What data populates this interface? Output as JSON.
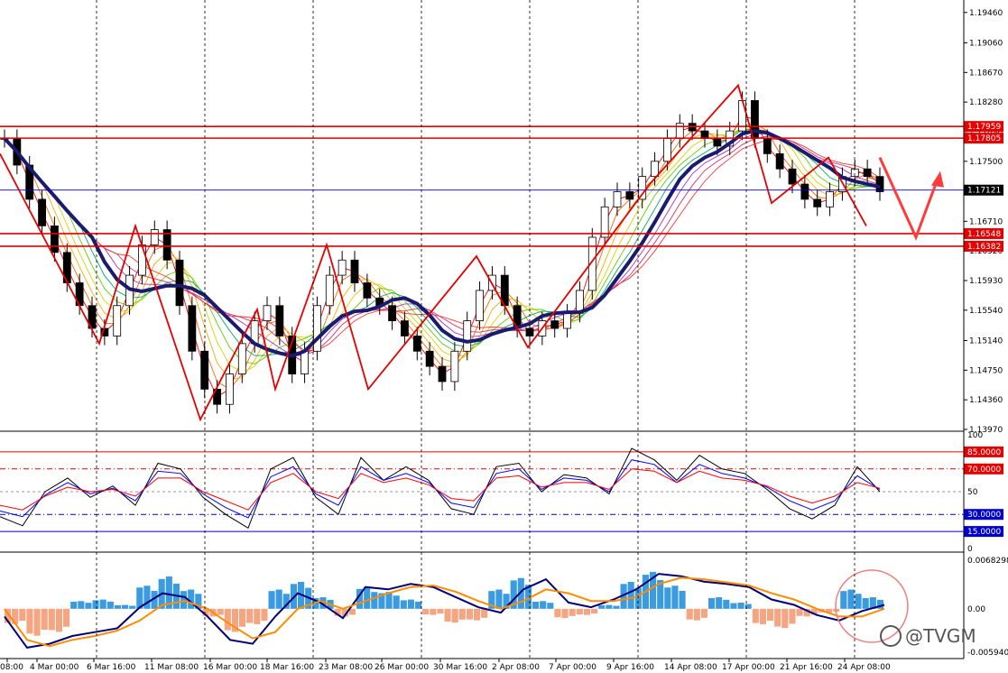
{
  "chart_data": [
    {
      "type": "candlestick",
      "symbol_pane": "price",
      "price_scale": [
        "1.19460",
        "1.19060",
        "1.18670",
        "1.18280",
        "1.17890",
        "1.17500",
        "1.17100",
        "1.16710",
        "1.16320",
        "1.15930",
        "1.15540",
        "1.15140",
        "1.14750",
        "1.14360",
        "1.13970"
      ],
      "ylim": [
        1.1397,
        1.196
      ],
      "time_labels": [
        "08:00",
        "4 Mar 00:00",
        "6 Mar 16:00",
        "11 Mar 08:00",
        "16 Mar 00:00",
        "18 Mar 16:00",
        "23 Mar 08:00",
        "26 Mar 00:00",
        "30 Mar 16:00",
        "2 Apr 08:00",
        "7 Apr 00:00",
        "9 Apr 16:00",
        "14 Apr 08:00",
        "17 Apr 00:00",
        "21 Apr 16:00",
        "24 Apr 08:00"
      ],
      "horizontal_levels": [
        {
          "label": "1.17959",
          "value": 1.17959,
          "color": "#e60000"
        },
        {
          "label": "1.17805",
          "value": 1.17805,
          "color": "#e60000"
        },
        {
          "label": "1.16548",
          "value": 1.16548,
          "color": "#e60000"
        },
        {
          "label": "1.16382",
          "value": 1.16382,
          "color": "#e60000"
        }
      ],
      "current_price": {
        "label": "1.17121",
        "value": 1.17121,
        "color": "#0000cc"
      },
      "close_path": [
        1.178,
        1.1745,
        1.17,
        1.1665,
        1.163,
        1.159,
        1.156,
        1.153,
        1.152,
        1.156,
        1.16,
        1.164,
        1.166,
        1.162,
        1.156,
        1.15,
        1.145,
        1.143,
        1.147,
        1.151,
        1.154,
        1.156,
        1.152,
        1.147,
        1.15,
        1.156,
        1.16,
        1.162,
        1.159,
        1.157,
        1.156,
        1.154,
        1.152,
        1.15,
        1.148,
        1.146,
        1.15,
        1.154,
        1.158,
        1.16,
        1.156,
        1.153,
        1.152,
        1.154,
        1.153,
        1.155,
        1.158,
        1.165,
        1.169,
        1.171,
        1.17,
        1.173,
        1.175,
        1.178,
        1.18,
        1.179,
        1.178,
        1.177,
        1.179,
        1.183,
        1.178,
        1.176,
        1.174,
        1.172,
        1.17,
        1.169,
        1.171,
        1.173,
        1.174,
        1.173,
        1.171
      ],
      "wave_path": [
        1.176,
        1.151,
        1.1665,
        1.141,
        1.1555,
        1.145,
        1.164,
        1.145,
        1.1625,
        1.1505,
        1.172,
        1.185,
        1.1695,
        1.1755,
        1.1665
      ],
      "projection_arrows": [
        1.1755,
        1.165,
        1.173
      ]
    },
    {
      "type": "line",
      "pane": "oscillator",
      "scale_labels": [
        "100",
        "85.0000",
        "70.0000",
        "50",
        "30.0000",
        "15.0000",
        "0"
      ],
      "levels": [
        {
          "label": "85.0000",
          "value": 85,
          "color": "#e60000"
        },
        {
          "label": "70.0000",
          "value": 70,
          "color": "#e60000"
        },
        {
          "label": "30.0000",
          "value": 30,
          "color": "#0000cc"
        },
        {
          "label": "15.0000",
          "value": 15,
          "color": "#0000cc"
        }
      ],
      "ylim": [
        0,
        100
      ],
      "series": [
        {
          "color": "#000000",
          "values": [
            28,
            20,
            50,
            62,
            45,
            55,
            38,
            75,
            70,
            45,
            30,
            18,
            70,
            80,
            45,
            30,
            80,
            60,
            72,
            60,
            35,
            30,
            72,
            75,
            50,
            65,
            62,
            48,
            88,
            78,
            60,
            82,
            70,
            66,
            52,
            35,
            26,
            38,
            72,
            50
          ]
        },
        {
          "color": "#0000ff",
          "values": [
            33,
            28,
            47,
            58,
            48,
            53,
            42,
            68,
            66,
            48,
            36,
            27,
            63,
            72,
            48,
            38,
            72,
            60,
            66,
            58,
            40,
            36,
            66,
            70,
            52,
            62,
            60,
            50,
            78,
            74,
            58,
            74,
            66,
            62,
            54,
            42,
            34,
            42,
            64,
            52
          ]
        },
        {
          "color": "#ff0000",
          "values": [
            38,
            34,
            46,
            54,
            50,
            52,
            46,
            62,
            62,
            50,
            42,
            34,
            58,
            66,
            50,
            44,
            66,
            58,
            62,
            56,
            44,
            42,
            62,
            64,
            54,
            58,
            58,
            52,
            70,
            68,
            58,
            68,
            62,
            60,
            55,
            46,
            40,
            46,
            58,
            53
          ]
        }
      ]
    },
    {
      "type": "bar",
      "pane": "macd",
      "scale_labels": [
        "0.0068298",
        "0.00",
        "-0.005940"
      ],
      "ylim": [
        -0.00594,
        0.00683
      ],
      "histogram": [
        -0.002,
        -0.0035,
        -0.003,
        0.001,
        0.0012,
        0.0005,
        0.003,
        0.0042,
        0.0025,
        -0.001,
        -0.003,
        -0.002,
        0.0025,
        0.0035,
        0.0015,
        -0.001,
        0.0028,
        0.0022,
        0.0012,
        -0.0008,
        -0.0018,
        -0.0015,
        0.0025,
        0.004,
        0.001,
        -0.0012,
        -0.0008,
        0.0005,
        0.0035,
        0.0048,
        0.003,
        -0.0015,
        0.0015,
        0.0008,
        -0.002,
        -0.0025,
        -0.001,
        -0.0005,
        0.0025,
        0.0015
      ],
      "series": [
        {
          "color": "#00007a",
          "values": [
            -0.001,
            -0.005,
            -0.0045,
            -0.0035,
            -0.003,
            -0.0025,
            0.0002,
            0.002,
            0.0015,
            -0.001,
            -0.004,
            -0.0045,
            -0.001,
            0.002,
            0.0008,
            -0.0012,
            0.0028,
            0.0025,
            0.0032,
            0.0028,
            0.0015,
            0.0002,
            -0.0005,
            0.0025,
            0.0038,
            0.0008,
            0.0002,
            0.0012,
            0.0025,
            0.0045,
            0.0042,
            0.0035,
            0.0032,
            0.0028,
            0.0012,
            0.0005,
            -0.0008,
            -0.0015,
            -0.0003,
            0.0005
          ]
        },
        {
          "color": "#ff8c00",
          "values": [
            0.0,
            -0.004,
            -0.0048,
            -0.004,
            -0.0035,
            -0.0028,
            -0.0015,
            0.0005,
            0.001,
            0.0,
            -0.002,
            -0.0038,
            -0.003,
            0.0,
            0.001,
            0.0,
            0.001,
            0.002,
            0.0028,
            0.003,
            0.0022,
            0.001,
            0.0,
            0.001,
            0.0025,
            0.002,
            0.001,
            0.001,
            0.0015,
            0.0032,
            0.004,
            0.0038,
            0.0034,
            0.003,
            0.002,
            0.0012,
            0.0,
            -0.001,
            -0.001,
            0.0
          ]
        }
      ]
    }
  ],
  "watermark": {
    "text": "@TVGM"
  },
  "colors": {
    "background": "#ffffff",
    "grid": "#000000",
    "level": "#e60000",
    "current": "#0000cc",
    "wave": "#e60000",
    "ma_slow": "#1a1a6e"
  }
}
